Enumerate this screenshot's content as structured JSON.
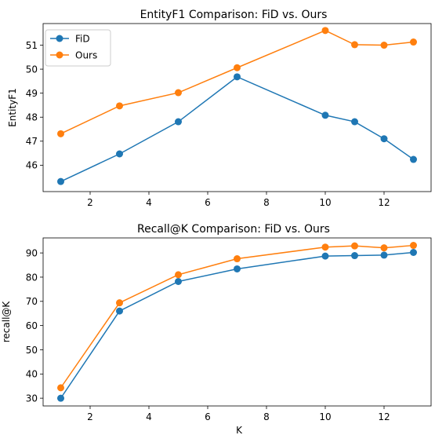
{
  "chart_data": [
    {
      "type": "line",
      "title": "EntityF1 Comparison: FiD vs. Ours",
      "xlabel": "",
      "ylabel": "EntityF1",
      "x": [
        1,
        3,
        5,
        7,
        10,
        11,
        12,
        13
      ],
      "xlim": [
        0.4,
        13.6
      ],
      "ylim": [
        44.9,
        51.9
      ],
      "xticks": [
        2,
        4,
        6,
        8,
        10,
        12
      ],
      "yticks": [
        46,
        47,
        48,
        49,
        50,
        51
      ],
      "grid": false,
      "legend": "top-left",
      "series": [
        {
          "name": "FiD",
          "color": "#1f77b4",
          "values": [
            45.32,
            46.47,
            47.81,
            49.68,
            48.08,
            47.81,
            47.1,
            46.24
          ]
        },
        {
          "name": "Ours",
          "color": "#ff7f0e",
          "values": [
            47.31,
            48.47,
            49.02,
            50.06,
            51.61,
            51.02,
            51.0,
            51.13
          ]
        }
      ]
    },
    {
      "type": "line",
      "title": "Recall@K Comparison: FiD vs. Ours",
      "xlabel": "K",
      "ylabel": "recall@K",
      "x": [
        1,
        3,
        5,
        7,
        10,
        11,
        12,
        13
      ],
      "xlim": [
        0.4,
        13.6
      ],
      "ylim": [
        26.8,
        96.2
      ],
      "xticks": [
        2,
        4,
        6,
        8,
        10,
        12
      ],
      "yticks": [
        30,
        40,
        50,
        60,
        70,
        80,
        90
      ],
      "grid": false,
      "legend": "none",
      "series": [
        {
          "name": "FiD",
          "color": "#1f77b4",
          "values": [
            30.0,
            66.0,
            78.2,
            83.4,
            88.7,
            88.9,
            89.1,
            90.2
          ]
        },
        {
          "name": "Ours",
          "color": "#ff7f0e",
          "values": [
            34.3,
            69.4,
            81.0,
            87.6,
            92.4,
            92.9,
            92.1,
            93.1
          ]
        }
      ]
    }
  ]
}
